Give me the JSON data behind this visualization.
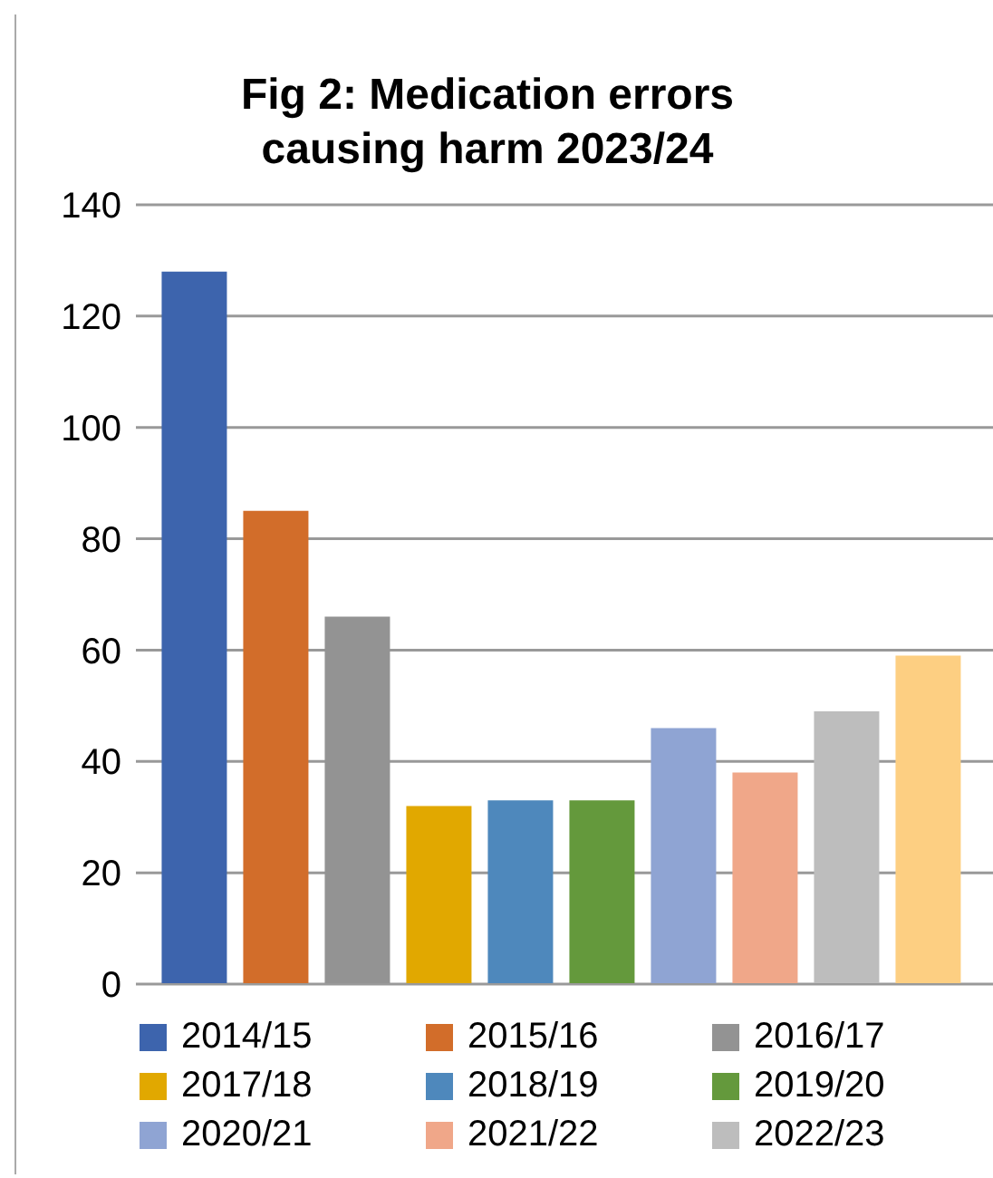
{
  "chart_data": {
    "type": "bar",
    "title": "Fig 2: Medication errors causing harm 2023/24",
    "categories": [
      null
    ],
    "series": [
      {
        "name": "2014/15",
        "color": "#3d64ad",
        "values": [
          128
        ]
      },
      {
        "name": "2015/16",
        "color": "#d26d2a",
        "values": [
          85
        ]
      },
      {
        "name": "2016/17",
        "color": "#939393",
        "values": [
          66
        ]
      },
      {
        "name": "2017/18",
        "color": "#e1a800",
        "values": [
          32
        ]
      },
      {
        "name": "2018/19",
        "color": "#4e88bc",
        "values": [
          33
        ]
      },
      {
        "name": "2019/20",
        "color": "#64993c",
        "values": [
          33
        ]
      },
      {
        "name": "2020/21",
        "color": "#8fa4d3",
        "values": [
          46
        ]
      },
      {
        "name": "2021/22",
        "color": "#f0a789",
        "values": [
          38
        ]
      },
      {
        "name": "2022/23",
        "color": "#bdbdbd",
        "values": [
          49
        ]
      },
      {
        "color": "#fdcf82",
        "values": [
          59
        ]
      }
    ],
    "ylim": [
      0,
      140
    ],
    "yticks": [
      0,
      20,
      40,
      60,
      80,
      100,
      120,
      140
    ],
    "grid": "y",
    "legend": "bottom"
  }
}
